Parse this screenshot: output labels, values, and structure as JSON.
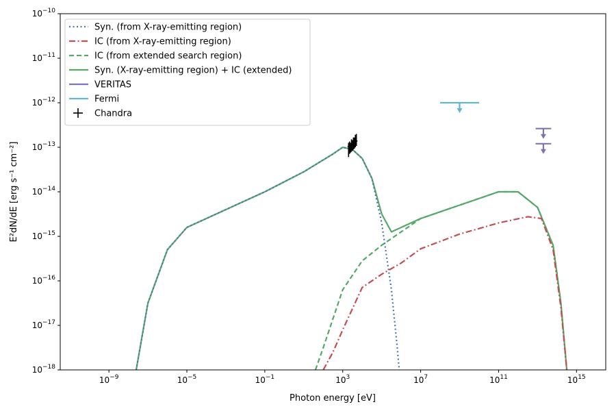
{
  "chart_data": {
    "type": "line",
    "title": "",
    "xlabel": "Photon energy [eV]",
    "ylabel": "E²dN/dE [erg s⁻¹ cm⁻²]",
    "xscale": "log",
    "yscale": "log",
    "xlim_log10": [
      -11.5,
      16.5
    ],
    "ylim_log10": [
      -18,
      -10
    ],
    "x_ticks": [
      {
        "log": -9,
        "label": "10",
        "exp": "−9"
      },
      {
        "log": -5,
        "label": "10",
        "exp": "−5"
      },
      {
        "log": -1,
        "label": "10",
        "exp": "−1"
      },
      {
        "log": 3,
        "label": "10",
        "exp": "3"
      },
      {
        "log": 7,
        "label": "10",
        "exp": "7"
      },
      {
        "log": 11,
        "label": "10",
        "exp": "11"
      },
      {
        "log": 15,
        "label": "10",
        "exp": "15"
      }
    ],
    "y_ticks": [
      {
        "log": -18,
        "label": "10",
        "exp": "−18"
      },
      {
        "log": -17,
        "label": "10",
        "exp": "−17"
      },
      {
        "log": -16,
        "label": "10",
        "exp": "−16"
      },
      {
        "log": -15,
        "label": "10",
        "exp": "−15"
      },
      {
        "log": -14,
        "label": "10",
        "exp": "−14"
      },
      {
        "log": -13,
        "label": "10",
        "exp": "−13"
      },
      {
        "log": -12,
        "label": "10",
        "exp": "−12"
      },
      {
        "log": -11,
        "label": "10",
        "exp": "−11"
      },
      {
        "log": -10,
        "label": "10",
        "exp": "−10"
      }
    ],
    "legend_position": "top-left",
    "series": [
      {
        "name": "Syn. (from X-ray-emitting region)",
        "color": "#4c72b0",
        "style": "dotted",
        "points_log10": [
          [
            -7.6,
            -18.0
          ],
          [
            -7,
            -16.5
          ],
          [
            -6,
            -15.3
          ],
          [
            -5,
            -14.8
          ],
          [
            -3,
            -14.4
          ],
          [
            -1,
            -14.0
          ],
          [
            1,
            -13.55
          ],
          [
            2.5,
            -13.15
          ],
          [
            3,
            -13.0
          ],
          [
            3.5,
            -13.05
          ],
          [
            4,
            -13.25
          ],
          [
            4.5,
            -13.7
          ],
          [
            5,
            -14.7
          ],
          [
            5.5,
            -16.2
          ],
          [
            5.8,
            -17.5
          ],
          [
            5.9,
            -18.0
          ]
        ]
      },
      {
        "name": "IC (from X-ray-emitting region)",
        "color": "#c44e52",
        "style": "dashdot",
        "points_log10": [
          [
            2.0,
            -18.0
          ],
          [
            2.5,
            -17.6
          ],
          [
            3.0,
            -17.1
          ],
          [
            4.0,
            -16.15
          ],
          [
            5.0,
            -15.85
          ],
          [
            6.0,
            -15.6
          ],
          [
            7.0,
            -15.28
          ],
          [
            9.0,
            -14.95
          ],
          [
            11.0,
            -14.7
          ],
          [
            12.5,
            -14.56
          ],
          [
            13.2,
            -14.6
          ],
          [
            13.8,
            -15.3
          ],
          [
            14.2,
            -16.6
          ],
          [
            14.5,
            -18.0
          ]
        ]
      },
      {
        "name": "IC (from extended search region)",
        "color": "#55a868",
        "style": "dashed",
        "points_log10": [
          [
            1.6,
            -18.0
          ],
          [
            2.0,
            -17.5
          ],
          [
            3.0,
            -16.2
          ],
          [
            4.0,
            -15.55
          ],
          [
            5.0,
            -15.2
          ],
          [
            6.0,
            -14.9
          ],
          [
            7.0,
            -14.6
          ],
          [
            9.0,
            -14.3
          ],
          [
            11.0,
            -14.0
          ],
          [
            12.0,
            -14.0
          ],
          [
            13.0,
            -14.35
          ],
          [
            13.8,
            -15.2
          ],
          [
            14.2,
            -16.5
          ],
          [
            14.5,
            -18.0
          ]
        ]
      },
      {
        "name": "Syn. (X-ray-emitting region) + IC (extended)",
        "color": "#55a868",
        "style": "solid",
        "points_log10": [
          [
            -7.6,
            -18.0
          ],
          [
            -7,
            -16.5
          ],
          [
            -6,
            -15.3
          ],
          [
            -5,
            -14.8
          ],
          [
            -3,
            -14.4
          ],
          [
            -1,
            -14.0
          ],
          [
            1,
            -13.55
          ],
          [
            2.5,
            -13.15
          ],
          [
            3,
            -13.0
          ],
          [
            3.5,
            -13.05
          ],
          [
            4,
            -13.25
          ],
          [
            4.5,
            -13.7
          ],
          [
            5,
            -14.5
          ],
          [
            5.5,
            -14.9
          ],
          [
            6,
            -14.8
          ],
          [
            7,
            -14.6
          ],
          [
            9,
            -14.3
          ],
          [
            11,
            -14.0
          ],
          [
            12,
            -14.0
          ],
          [
            13,
            -14.35
          ],
          [
            13.8,
            -15.2
          ],
          [
            14.2,
            -16.5
          ],
          [
            14.5,
            -18.0
          ]
        ]
      }
    ],
    "upper_limits": [
      {
        "name": "VERITAS",
        "color": "#8172b2",
        "x_range_log10": [
          12.9,
          13.7
        ],
        "y_log10": -12.58
      },
      {
        "name": "VERITAS",
        "color": "#8172b2",
        "x_range_log10": [
          12.9,
          13.7
        ],
        "y_log10": -12.92
      },
      {
        "name": "Fermi",
        "color": "#64b5cd",
        "x_range_log10": [
          8.0,
          10.0
        ],
        "y_log10": -12.0
      }
    ],
    "chandra": {
      "name": "Chandra",
      "color": "#000000",
      "points_log10": [
        [
          3.3,
          -12.98,
          -13.22,
          -12.9
        ],
        [
          3.35,
          -12.95,
          -13.15,
          -12.87
        ],
        [
          3.4,
          -12.97,
          -13.12,
          -12.9
        ],
        [
          3.45,
          -12.93,
          -13.1,
          -12.82
        ],
        [
          3.5,
          -12.95,
          -13.08,
          -12.84
        ],
        [
          3.55,
          -12.9,
          -13.05,
          -12.78
        ],
        [
          3.6,
          -12.88,
          -13.03,
          -12.78
        ],
        [
          3.65,
          -12.85,
          -13.0,
          -12.72
        ],
        [
          3.7,
          -12.86,
          -12.97,
          -12.7
        ]
      ]
    },
    "legend": [
      {
        "label": "Syn. (from X-ray-emitting region)",
        "color": "#4c72b0",
        "style": "dotted"
      },
      {
        "label": "IC (from X-ray-emitting region)",
        "color": "#c44e52",
        "style": "dashdot"
      },
      {
        "label": "IC (from extended search region)",
        "color": "#55a868",
        "style": "dashed"
      },
      {
        "label": "Syn. (X-ray-emitting region) + IC (extended)",
        "color": "#55a868",
        "style": "solid"
      },
      {
        "label": "VERITAS",
        "color": "#8172b2",
        "style": "solid"
      },
      {
        "label": "Fermi",
        "color": "#64b5cd",
        "style": "solid"
      },
      {
        "label": "Chandra",
        "color": "#000000",
        "style": "cross"
      }
    ]
  }
}
